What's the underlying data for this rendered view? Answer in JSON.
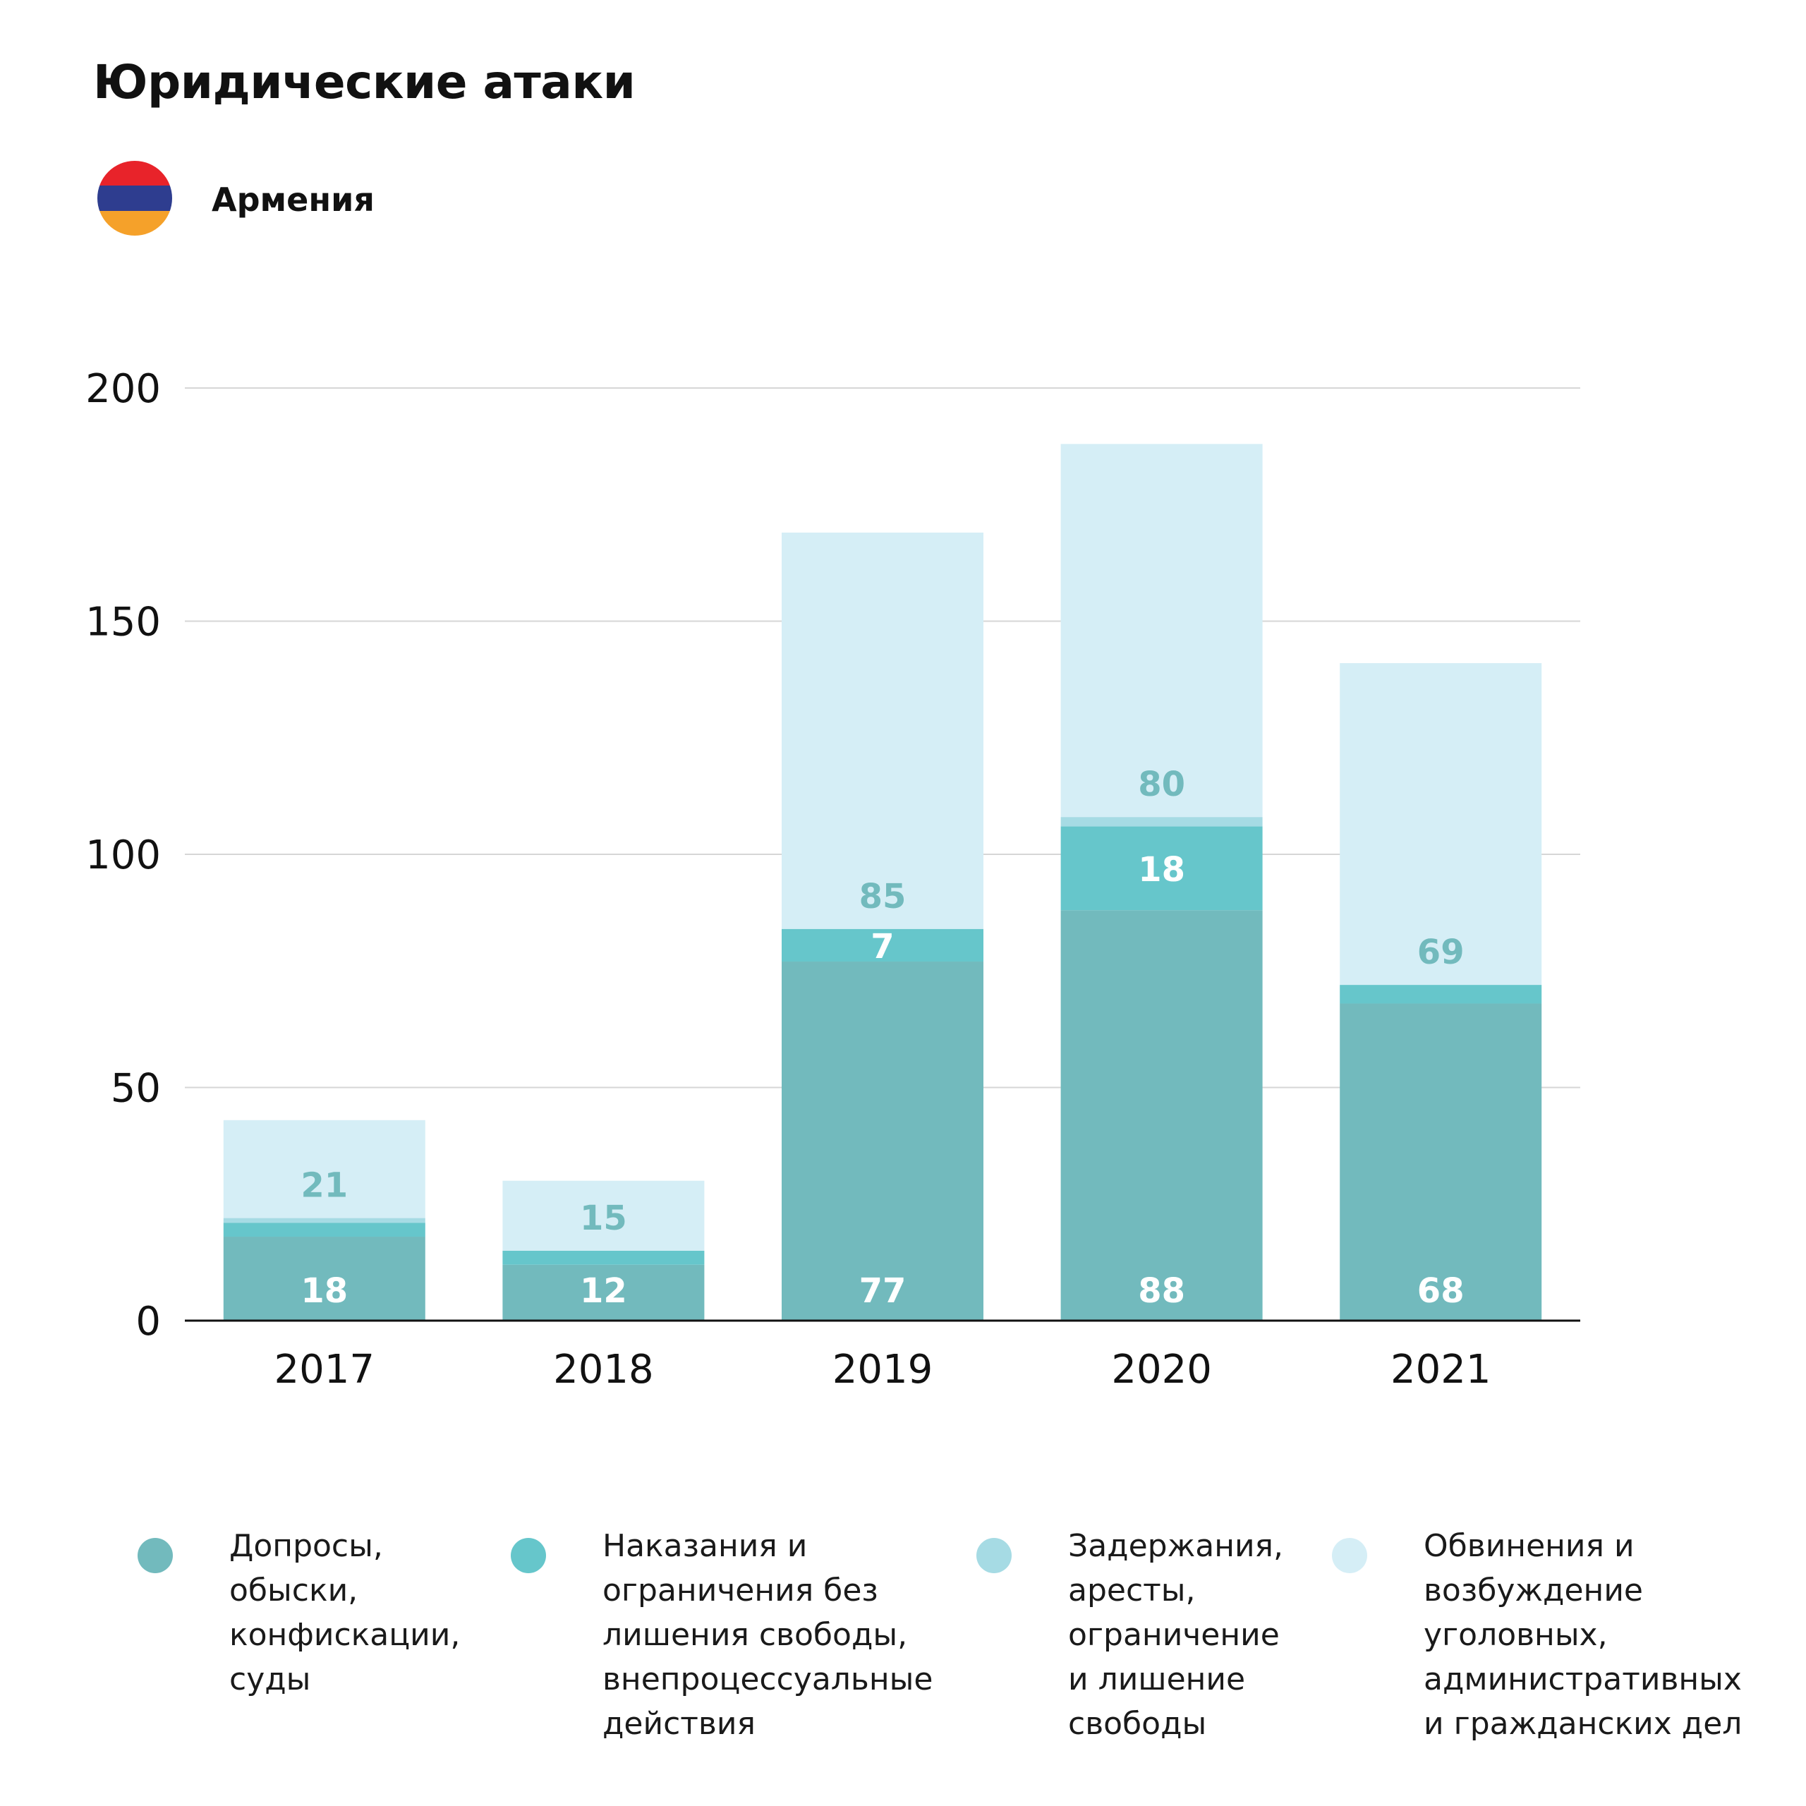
{
  "header": {
    "title": "Юридические атаки",
    "country": "Армения",
    "flag_colors": [
      "#e8232a",
      "#2e3d8f",
      "#f5a12a"
    ]
  },
  "chart_data": {
    "type": "bar",
    "stacked": true,
    "categories": [
      "2017",
      "2018",
      "2019",
      "2020",
      "2021"
    ],
    "ylim": [
      0,
      200
    ],
    "yticks": [
      "0",
      "50",
      "100",
      "150",
      "200"
    ],
    "grid": true,
    "legend_position": "bottom",
    "series": [
      {
        "name": "Допросы, обыски, конфискации, суды",
        "name_lines": [
          "Допросы,",
          "обыски,",
          "конфискации,",
          "суды"
        ],
        "color": "#72babd",
        "values": [
          18,
          12,
          77,
          88,
          68
        ],
        "labels": [
          "18",
          "12",
          "77",
          "88",
          "68"
        ],
        "label_color": "#ffffff"
      },
      {
        "name": "Наказания и ограничения без лишения свободы, внепроцессуальные действия",
        "name_lines": [
          "Наказания и",
          "ограничения без",
          "лишения свободы,",
          "внепроцессуальные",
          "действия"
        ],
        "color": "#66c6cb",
        "values": [
          3,
          3,
          7,
          18,
          4
        ],
        "labels": [
          "",
          "",
          "7",
          "18",
          ""
        ],
        "label_color": "#ffffff"
      },
      {
        "name": "Задержания, аресты, ограничение и лишение свободы",
        "name_lines": [
          "Задержания,",
          "аресты,",
          "ограничение",
          "и лишение",
          "свободы"
        ],
        "color": "#a6dbe4",
        "values": [
          1,
          0,
          0,
          2,
          0
        ],
        "labels": [
          "",
          "",
          "",
          "",
          ""
        ],
        "label_color": "#72babd"
      },
      {
        "name": "Обвинения и возбуждение уголовных, административных и гражданских дел",
        "name_lines": [
          "Обвинения и",
          "возбуждение",
          "уголовных,",
          "административных",
          "и гражданских дел"
        ],
        "color": "#d5eef6",
        "values": [
          21,
          15,
          85,
          80,
          69
        ],
        "labels": [
          "21",
          "15",
          "85",
          "80",
          "69"
        ],
        "label_color": "#72babd"
      }
    ]
  }
}
